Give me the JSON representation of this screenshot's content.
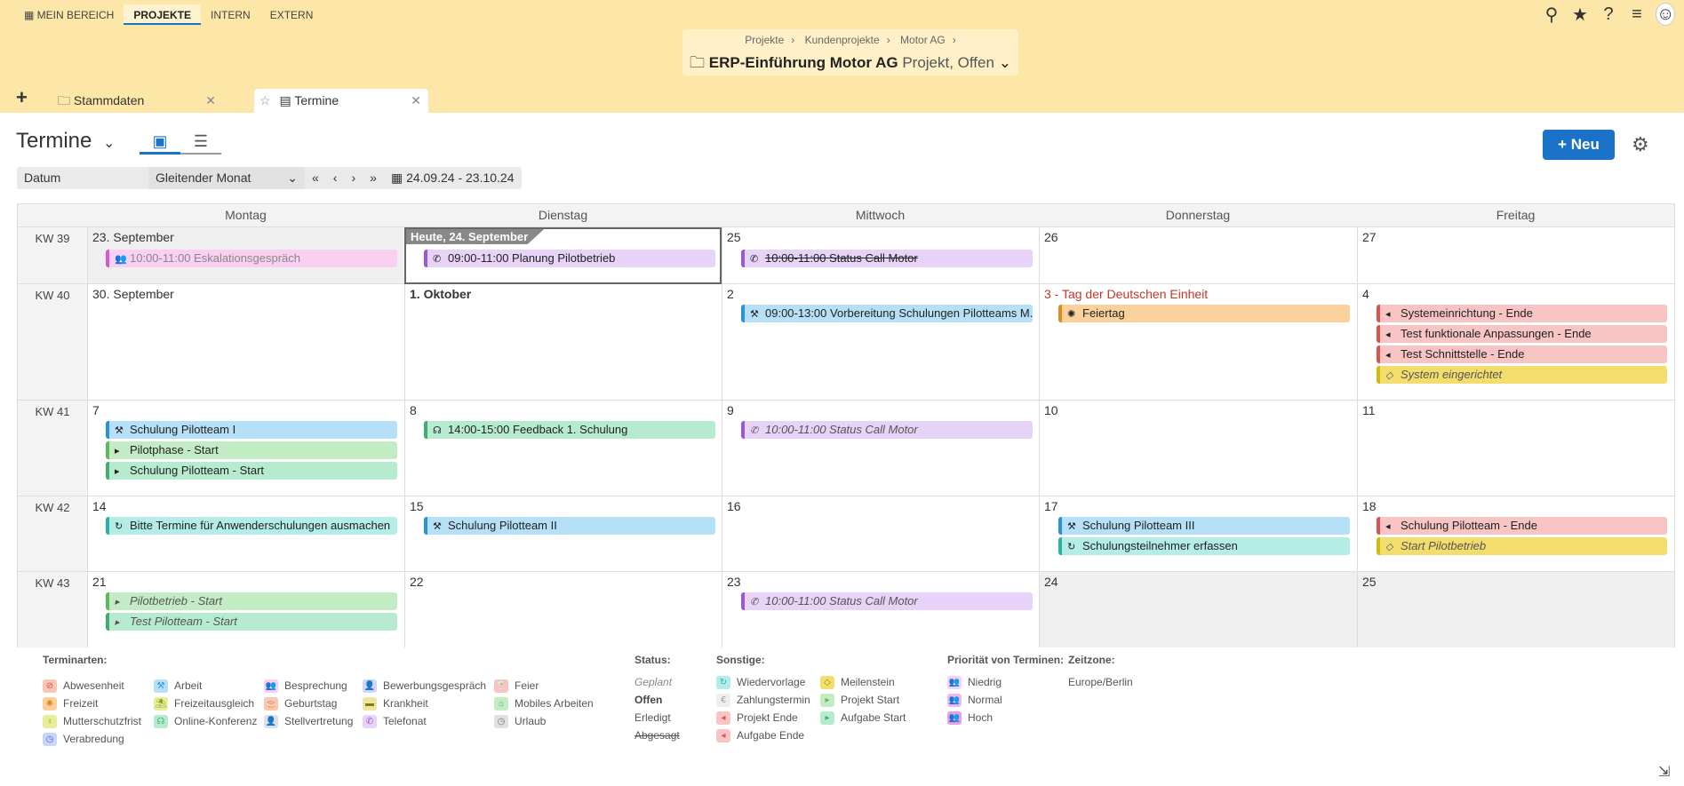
{
  "topnav": {
    "items": [
      "MEIN BEREICH",
      "PROJEKTE",
      "INTERN",
      "EXTERN"
    ]
  },
  "breadcrumb": {
    "items": [
      "Projekte",
      "Kundenprojekte",
      "Motor AG"
    ],
    "separator": "›"
  },
  "project": {
    "title": "ERP-Einführung Motor AG",
    "subtitle": "Projekt, Offen"
  },
  "tabs": [
    {
      "label": "Stammdaten"
    },
    {
      "label": "Termine"
    }
  ],
  "page": {
    "title": "Termine",
    "new_button": "Neu"
  },
  "filter": {
    "field": "Datum",
    "mode": "Gleitender Monat",
    "range": "24.09.24 - 23.10.24"
  },
  "calendar": {
    "days": [
      "Montag",
      "Dienstag",
      "Mittwoch",
      "Donnerstag",
      "Freitag"
    ],
    "weeks": [
      "KW 39",
      "KW 40",
      "KW 41",
      "KW 42",
      "KW 43"
    ],
    "today_label": "Heute, 24. September",
    "daynums": [
      [
        "23. September",
        "",
        "25",
        "26",
        "27"
      ],
      [
        "30. September",
        "1. Oktober",
        "2",
        "3 - Tag der Deutschen Einheit",
        "4"
      ],
      [
        "7",
        "8",
        "9",
        "10",
        "11"
      ],
      [
        "14",
        "15",
        "16",
        "17",
        "18"
      ],
      [
        "21",
        "22",
        "23",
        "24",
        "25"
      ]
    ],
    "events": {
      "e0": "10:00-11:00 Eskalationsgespräch",
      "e1": "09:00-11:00 Planung Pilotbetrieb",
      "e2": "10:00-11:00 Status Call Motor",
      "e3": "09:00-13:00 Vorbereitung Schulungen Pilotteams M...",
      "e4": "Feiertag",
      "e5": "Systemeinrichtung - Ende",
      "e6": "Test funktionale Anpassungen - Ende",
      "e7": "Test Schnittstelle - Ende",
      "e8": "System eingerichtet",
      "e9": "Schulung Pilotteam I",
      "e10": "Pilotphase - Start",
      "e11": "Schulung Pilotteam - Start",
      "e12": "14:00-15:00 Feedback 1. Schulung",
      "e13": "10:00-11:00 Status Call Motor",
      "e14": "Bitte Termine für Anwenderschulungen ausmachen",
      "e15": "Schulung Pilotteam II",
      "e16": "Schulung Pilotteam III",
      "e17": "Schulungsteilnehmer erfassen",
      "e18": "Schulung Pilotteam - Ende",
      "e19": "Start Pilotbetrieb",
      "e20": "Pilotbetrieb - Start",
      "e21": "Test Pilotteam - Start",
      "e22": "10:00-11:00 Status Call Motor"
    }
  },
  "legend": {
    "terminarten_title": "Terminarten:",
    "terminarten": [
      "Abwesenheit",
      "Arbeit",
      "Besprechung",
      "Bewerbungsgespräch",
      "Feier",
      "Freizeit",
      "Freizeitausgleich",
      "Geburtstag",
      "Krankheit",
      "Mobiles Arbeiten",
      "Mutterschutzfrist",
      "Online-Konferenz",
      "Stellvertretung",
      "Telefonat",
      "Urlaub",
      "Verabredung"
    ],
    "status_title": "Status:",
    "status": [
      "Geplant",
      "Offen",
      "Erledigt",
      "Abgesagt"
    ],
    "sonstige_title": "Sonstige:",
    "sonstige": [
      "Wiedervorlage",
      "Meilenstein",
      "Zahlungstermin",
      "Projekt Start",
      "Projekt Ende",
      "Aufgabe Start",
      "Aufgabe Ende"
    ],
    "prio_title": "Priorität von Terminen:",
    "prio": [
      "Niedrig",
      "Normal",
      "Hoch"
    ],
    "tz_title": "Zeitzone:",
    "tz": "Europe/Berlin"
  },
  "colors": {
    "header_bg": "#fde7a8",
    "accent": "#1a73c9"
  }
}
